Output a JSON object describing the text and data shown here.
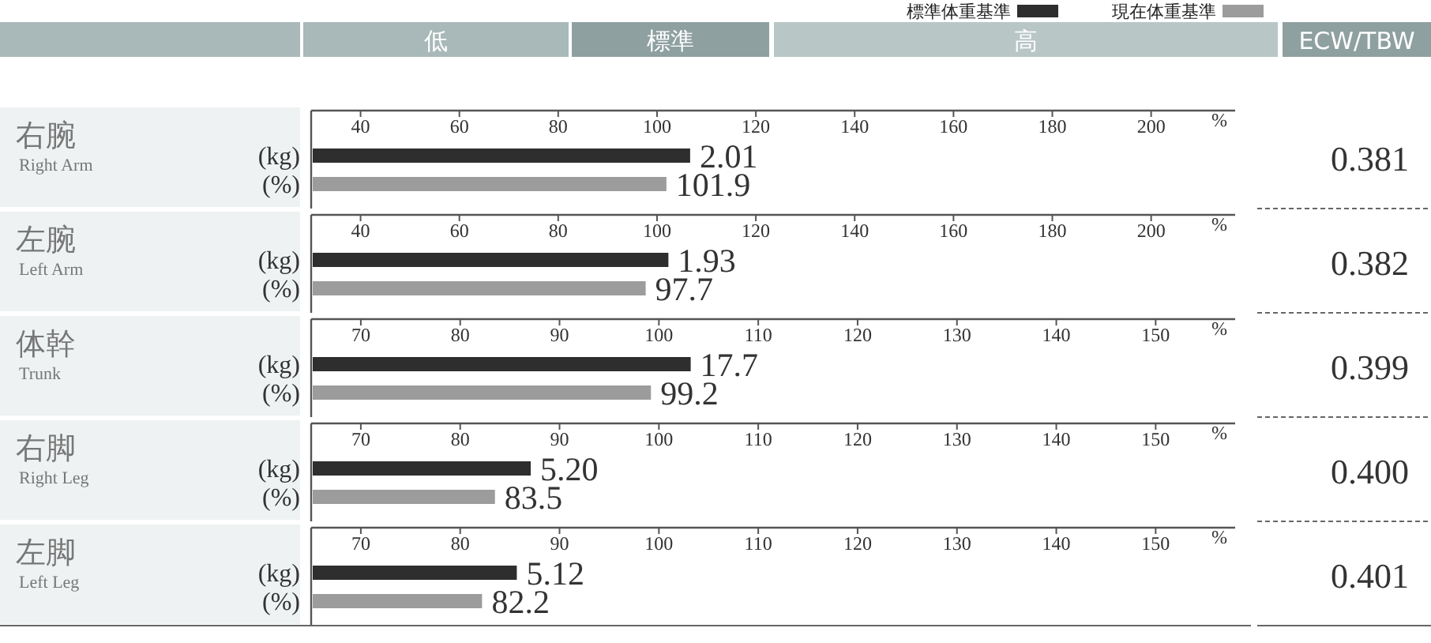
{
  "chart_data": [
    {
      "type": "bar",
      "orientation": "horizontal",
      "ylabel": "右腕",
      "xlabel": "%",
      "categories": [
        "(kg)",
        "(%)"
      ],
      "values": [
        106.7,
        101.9
      ],
      "colors": [
        "#2e2e2e",
        "#9c9c9c"
      ],
      "value_labels": [
        null,
        "101.9"
      ],
      "xlim": [
        30,
        217
      ],
      "xticks": [
        40,
        60,
        80,
        100,
        120,
        140,
        160,
        180,
        200
      ],
      "annotations": [
        "低",
        "標準",
        "高",
        "ECW/TBW",
        "標準体重基準",
        "現在体重基準",
        "Right Arm",
        "0.381",
        {
          "text": "2.01",
          "x": 106.7,
          "y": "(kg)"
        }
      ]
    },
    {
      "type": "bar",
      "orientation": "horizontal",
      "ylabel": "左腕",
      "xlabel": "%",
      "categories": [
        "(kg)",
        "(%)"
      ],
      "values": [
        102.3,
        97.7
      ],
      "colors": [
        "#2e2e2e",
        "#9c9c9c"
      ],
      "value_labels": [
        null,
        "97.7"
      ],
      "xlim": [
        30,
        217
      ],
      "xticks": [
        40,
        60,
        80,
        100,
        120,
        140,
        160,
        180,
        200
      ],
      "annotations": [
        "Left Arm",
        "0.382",
        {
          "text": "1.93",
          "x": 102.3,
          "y": "(kg)"
        }
      ]
    },
    {
      "type": "bar",
      "orientation": "horizontal",
      "ylabel": "体幹",
      "xlabel": "%",
      "categories": [
        "(kg)",
        "(%)"
      ],
      "values": [
        103.2,
        99.2
      ],
      "colors": [
        "#2e2e2e",
        "#9c9c9c"
      ],
      "value_labels": [
        null,
        "99.2"
      ],
      "xlim": [
        65,
        158
      ],
      "xticks": [
        70,
        80,
        90,
        100,
        110,
        120,
        130,
        140,
        150
      ],
      "annotations": [
        "Trunk",
        "0.399",
        {
          "text": "17.7",
          "x": 103.2,
          "y": "(kg)"
        }
      ]
    },
    {
      "type": "bar",
      "orientation": "horizontal",
      "ylabel": "右脚",
      "xlabel": "%",
      "categories": [
        "(kg)",
        "(%)"
      ],
      "values": [
        87.1,
        83.5
      ],
      "colors": [
        "#2e2e2e",
        "#9c9c9c"
      ],
      "value_labels": [
        null,
        "83.5"
      ],
      "xlim": [
        65,
        158
      ],
      "xticks": [
        70,
        80,
        90,
        100,
        110,
        120,
        130,
        140,
        150
      ],
      "annotations": [
        "Right Leg",
        "0.400",
        {
          "text": "5.20",
          "x": 87.1,
          "y": "(kg)"
        }
      ]
    },
    {
      "type": "bar",
      "orientation": "horizontal",
      "ylabel": "左脚",
      "xlabel": "%",
      "categories": [
        "(kg)",
        "(%)"
      ],
      "values": [
        85.7,
        82.2
      ],
      "colors": [
        "#2e2e2e",
        "#9c9c9c"
      ],
      "value_labels": [
        null,
        "82.2"
      ],
      "xlim": [
        65,
        158
      ],
      "xticks": [
        70,
        80,
        90,
        100,
        110,
        120,
        130,
        140,
        150
      ],
      "annotations": [
        "Left Leg",
        "0.401",
        {
          "text": "5.12",
          "x": 85.7,
          "y": "(kg)"
        }
      ]
    }
  ]
}
